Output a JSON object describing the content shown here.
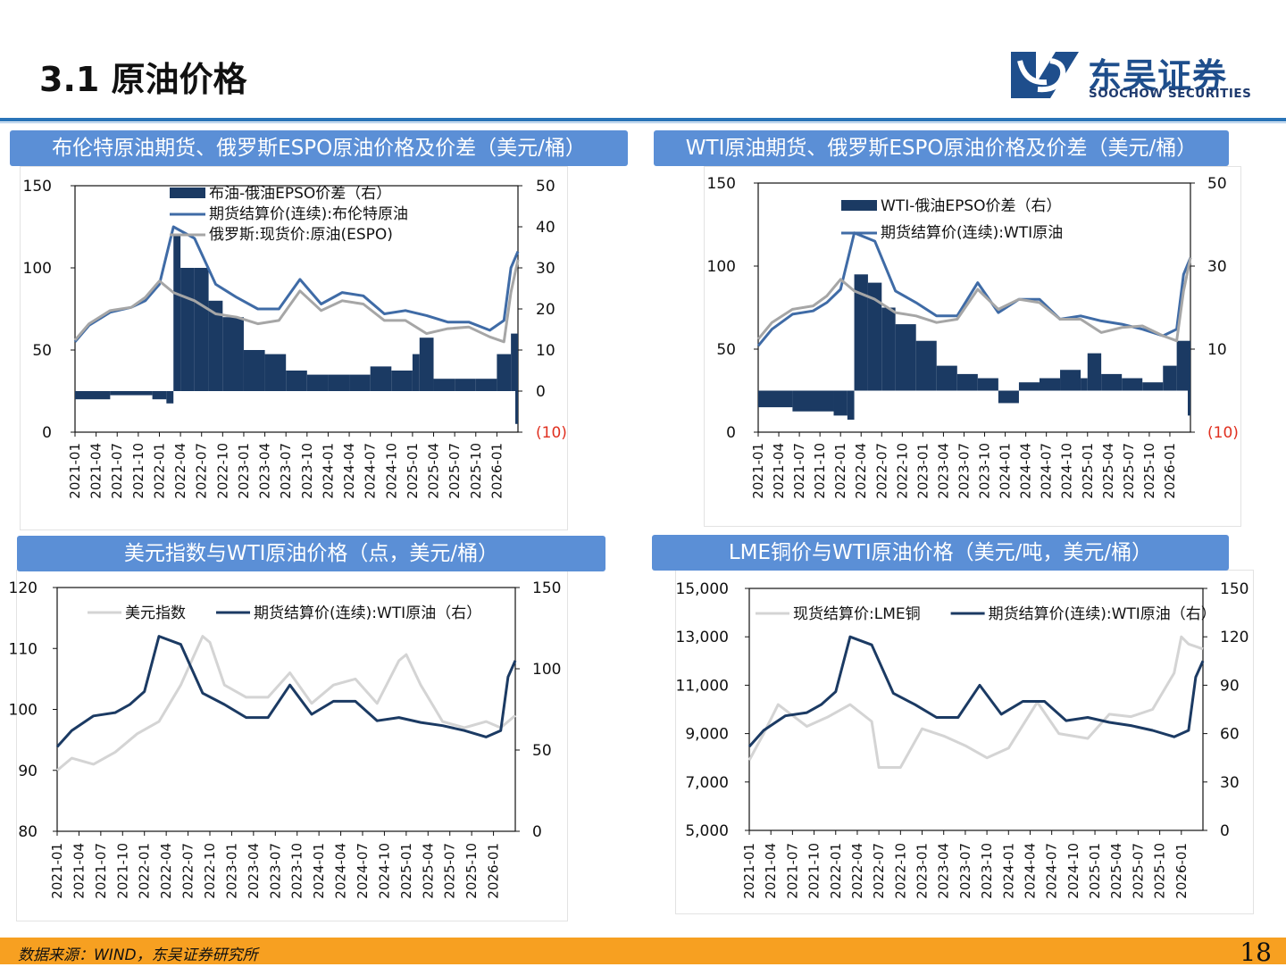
{
  "header": {
    "title": "3.1 原油价格",
    "logo_cn": "东吴证券",
    "logo_en": "SOOCHOW SECURITIES"
  },
  "footer": {
    "source": "数据来源：WIND，东吴证券研究所",
    "page_number": "18"
  },
  "colors": {
    "navy": "#1b3a63",
    "steel": "#3f6ba6",
    "gray": "#a6a6a6",
    "lightgray": "#d4d4d4",
    "header_blue": "#5b8fd6",
    "negative_label": "#e03020"
  },
  "x_ticks": [
    "2021-01",
    "2021-04",
    "2021-07",
    "2021-10",
    "2022-01",
    "2022-04",
    "2022-07",
    "2022-10",
    "2023-01",
    "2023-04",
    "2023-07",
    "2023-10",
    "2024-01",
    "2024-04",
    "2024-07",
    "2024-10",
    "2025-01",
    "2025-04",
    "2025-07",
    "2025-10",
    "2026-01"
  ],
  "chart_data": [
    {
      "type": "bar+line",
      "title": "布伦特原油期货、俄罗斯ESPO原油价格及价差（美元/桶）",
      "left_axis": {
        "ylim": [
          0,
          150
        ],
        "ticks": [
          "0",
          "50",
          "100",
          "150"
        ]
      },
      "right_axis": {
        "ylim": [
          -10,
          50
        ],
        "ticks": [
          "(10)",
          "0",
          "10",
          "20",
          "30",
          "40",
          "50"
        ]
      },
      "legend_position": "top-left",
      "series": [
        {
          "name": "布油-俄油EPSO价差（右）",
          "kind": "bar",
          "axis": "right",
          "color": "#1b3a63",
          "x": [
            "2021-01",
            "2021-06",
            "2021-12",
            "2022-02",
            "2022-03",
            "2022-04",
            "2022-06",
            "2022-08",
            "2022-10",
            "2023-01",
            "2023-04",
            "2023-07",
            "2023-10",
            "2024-01",
            "2024-04",
            "2024-07",
            "2024-10",
            "2025-01",
            "2025-02",
            "2025-04",
            "2025-07",
            "2025-10",
            "2026-01",
            "2026-03",
            "2026-04"
          ],
          "values": [
            -2,
            -1,
            -2,
            -3,
            38,
            30,
            30,
            22,
            18,
            10,
            9,
            5,
            4,
            4,
            4,
            6,
            5,
            9,
            13,
            3,
            3,
            3,
            9,
            14,
            -8
          ]
        },
        {
          "name": "期货结算价(连续):布伦特原油",
          "kind": "line",
          "axis": "left",
          "color": "#3f6ba6",
          "x": [
            "2021-01",
            "2021-03",
            "2021-06",
            "2021-09",
            "2021-11",
            "2022-01",
            "2022-03",
            "2022-06",
            "2022-09",
            "2022-12",
            "2023-03",
            "2023-06",
            "2023-09",
            "2023-12",
            "2024-03",
            "2024-06",
            "2024-09",
            "2024-12",
            "2025-03",
            "2025-06",
            "2025-09",
            "2025-12",
            "2026-02",
            "2026-03",
            "2026-04"
          ],
          "values": [
            55,
            65,
            73,
            76,
            80,
            90,
            125,
            118,
            90,
            82,
            75,
            75,
            93,
            78,
            85,
            83,
            72,
            74,
            71,
            67,
            67,
            62,
            68,
            100,
            110
          ]
        },
        {
          "name": "俄罗斯:现货价:原油(ESPO)",
          "kind": "line",
          "axis": "left",
          "color": "#a6a6a6",
          "x": [
            "2021-01",
            "2021-03",
            "2021-06",
            "2021-09",
            "2021-11",
            "2022-01",
            "2022-03",
            "2022-06",
            "2022-09",
            "2022-12",
            "2023-03",
            "2023-06",
            "2023-09",
            "2023-12",
            "2024-03",
            "2024-06",
            "2024-09",
            "2024-12",
            "2025-03",
            "2025-06",
            "2025-09",
            "2025-12",
            "2026-02",
            "2026-03",
            "2026-04"
          ],
          "values": [
            56,
            66,
            74,
            76,
            82,
            92,
            85,
            80,
            72,
            70,
            66,
            68,
            86,
            74,
            80,
            78,
            68,
            68,
            60,
            63,
            64,
            58,
            55,
            85,
            105
          ]
        }
      ]
    },
    {
      "type": "bar+line",
      "title": "WTI原油期货、俄罗斯ESPO原油价格及价差（美元/桶）",
      "left_axis": {
        "ylim": [
          0,
          150
        ],
        "ticks": [
          "0",
          "50",
          "100",
          "150"
        ]
      },
      "right_axis": {
        "ylim": [
          -10,
          50
        ],
        "ticks": [
          "(10)",
          "10",
          "30",
          "50"
        ]
      },
      "legend_position": "top-left",
      "series": [
        {
          "name": "WTI-俄油EPSO价差（右）",
          "kind": "bar",
          "axis": "right",
          "color": "#1b3a63",
          "x": [
            "2021-01",
            "2021-06",
            "2021-12",
            "2022-02",
            "2022-03",
            "2022-05",
            "2022-07",
            "2022-09",
            "2022-12",
            "2023-03",
            "2023-06",
            "2023-09",
            "2023-12",
            "2024-03",
            "2024-06",
            "2024-09",
            "2024-12",
            "2025-01",
            "2025-03",
            "2025-06",
            "2025-09",
            "2025-12",
            "2026-02",
            "2026-04"
          ],
          "values": [
            -4,
            -5,
            -6,
            -7,
            28,
            26,
            20,
            16,
            12,
            6,
            4,
            3,
            -3,
            2,
            3,
            5,
            3,
            9,
            4,
            3,
            2,
            6,
            12,
            -6
          ]
        },
        {
          "name": "期货结算价(连续):WTI原油",
          "kind": "line",
          "axis": "left",
          "color": "#3f6ba6",
          "x": [
            "2021-01",
            "2021-03",
            "2021-06",
            "2021-09",
            "2021-11",
            "2022-01",
            "2022-03",
            "2022-06",
            "2022-09",
            "2022-12",
            "2023-03",
            "2023-06",
            "2023-09",
            "2023-12",
            "2024-03",
            "2024-06",
            "2024-09",
            "2024-12",
            "2025-03",
            "2025-06",
            "2025-09",
            "2025-12",
            "2026-02",
            "2026-03",
            "2026-04"
          ],
          "values": [
            52,
            62,
            71,
            73,
            78,
            86,
            120,
            115,
            85,
            78,
            70,
            70,
            90,
            72,
            80,
            80,
            68,
            70,
            67,
            65,
            62,
            58,
            62,
            95,
            105
          ]
        },
        {
          "name": "俄罗斯:现货价:原油(ESPO)",
          "kind": "line",
          "axis": "left",
          "color": "#a6a6a6",
          "legend": false,
          "x": [
            "2021-01",
            "2021-03",
            "2021-06",
            "2021-09",
            "2021-11",
            "2022-01",
            "2022-03",
            "2022-06",
            "2022-09",
            "2022-12",
            "2023-03",
            "2023-06",
            "2023-09",
            "2023-12",
            "2024-03",
            "2024-06",
            "2024-09",
            "2024-12",
            "2025-03",
            "2025-06",
            "2025-09",
            "2025-12",
            "2026-02",
            "2026-03",
            "2026-04"
          ],
          "values": [
            56,
            66,
            74,
            76,
            82,
            92,
            85,
            80,
            72,
            70,
            66,
            68,
            86,
            74,
            80,
            78,
            68,
            68,
            60,
            63,
            64,
            58,
            55,
            85,
            105
          ]
        }
      ]
    },
    {
      "type": "line",
      "title": "美元指数与WTI原油价格（点，美元/桶）",
      "left_axis": {
        "ylim": [
          80,
          120
        ],
        "ticks": [
          "80",
          "90",
          "100",
          "110",
          "120"
        ]
      },
      "right_axis": {
        "ylim": [
          0,
          150
        ],
        "ticks": [
          "0",
          "50",
          "100",
          "150"
        ]
      },
      "legend_position": "top",
      "series": [
        {
          "name": "美元指数",
          "kind": "line",
          "axis": "left",
          "color": "#d4d4d4",
          "x": [
            "2021-01",
            "2021-03",
            "2021-06",
            "2021-09",
            "2021-12",
            "2022-03",
            "2022-06",
            "2022-09",
            "2022-10",
            "2022-12",
            "2023-03",
            "2023-06",
            "2023-09",
            "2023-12",
            "2024-03",
            "2024-06",
            "2024-09",
            "2024-12",
            "2025-01",
            "2025-03",
            "2025-06",
            "2025-09",
            "2025-12",
            "2026-02",
            "2026-04"
          ],
          "values": [
            90,
            92,
            91,
            93,
            96,
            98,
            104,
            112,
            111,
            104,
            102,
            102,
            106,
            101,
            104,
            105,
            101,
            108,
            109,
            104,
            98,
            97,
            98,
            97,
            99
          ]
        },
        {
          "name": "期货结算价(连续):WTI原油（右）",
          "kind": "line",
          "axis": "right",
          "color": "#1b3a63",
          "x": [
            "2021-01",
            "2021-03",
            "2021-06",
            "2021-09",
            "2021-11",
            "2022-01",
            "2022-03",
            "2022-06",
            "2022-09",
            "2022-12",
            "2023-03",
            "2023-06",
            "2023-09",
            "2023-12",
            "2024-03",
            "2024-06",
            "2024-09",
            "2024-12",
            "2025-03",
            "2025-06",
            "2025-09",
            "2025-12",
            "2026-02",
            "2026-03",
            "2026-04"
          ],
          "values": [
            52,
            62,
            71,
            73,
            78,
            86,
            120,
            115,
            85,
            78,
            70,
            70,
            90,
            72,
            80,
            80,
            68,
            70,
            67,
            65,
            62,
            58,
            62,
            95,
            105
          ]
        }
      ]
    },
    {
      "type": "line",
      "title": "LME铜价与WTI原油价格（美元/吨，美元/桶）",
      "left_axis": {
        "ylim": [
          5000,
          15000
        ],
        "ticks": [
          "5,000",
          "7,000",
          "9,000",
          "11,000",
          "13,000",
          "15,000"
        ]
      },
      "right_axis": {
        "ylim": [
          0,
          150
        ],
        "ticks": [
          "0",
          "30",
          "60",
          "90",
          "120",
          "150"
        ]
      },
      "legend_position": "top",
      "series": [
        {
          "name": "现货结算价:LME铜",
          "kind": "line",
          "axis": "left",
          "color": "#d4d4d4",
          "x": [
            "2021-01",
            "2021-03",
            "2021-05",
            "2021-09",
            "2021-12",
            "2022-03",
            "2022-06",
            "2022-07",
            "2022-10",
            "2023-01",
            "2023-04",
            "2023-07",
            "2023-10",
            "2024-01",
            "2024-05",
            "2024-08",
            "2024-12",
            "2025-03",
            "2025-06",
            "2025-09",
            "2025-12",
            "2026-01",
            "2026-02",
            "2026-04"
          ],
          "values": [
            7900,
            9000,
            10200,
            9300,
            9700,
            10200,
            9500,
            7600,
            7600,
            9200,
            8900,
            8500,
            8000,
            8400,
            10300,
            9000,
            8800,
            9800,
            9700,
            10000,
            11500,
            13000,
            12700,
            12500
          ]
        },
        {
          "name": "期货结算价(连续):WTI原油（右）",
          "kind": "line",
          "axis": "right",
          "color": "#1b3a63",
          "x": [
            "2021-01",
            "2021-03",
            "2021-06",
            "2021-09",
            "2021-11",
            "2022-01",
            "2022-03",
            "2022-06",
            "2022-09",
            "2022-12",
            "2023-03",
            "2023-06",
            "2023-09",
            "2023-12",
            "2024-03",
            "2024-06",
            "2024-09",
            "2024-12",
            "2025-03",
            "2025-06",
            "2025-09",
            "2025-12",
            "2026-02",
            "2026-03",
            "2026-04"
          ],
          "values": [
            52,
            62,
            71,
            73,
            78,
            86,
            120,
            115,
            85,
            78,
            70,
            70,
            90,
            72,
            80,
            80,
            68,
            70,
            67,
            65,
            62,
            58,
            62,
            95,
            105
          ]
        }
      ]
    }
  ]
}
